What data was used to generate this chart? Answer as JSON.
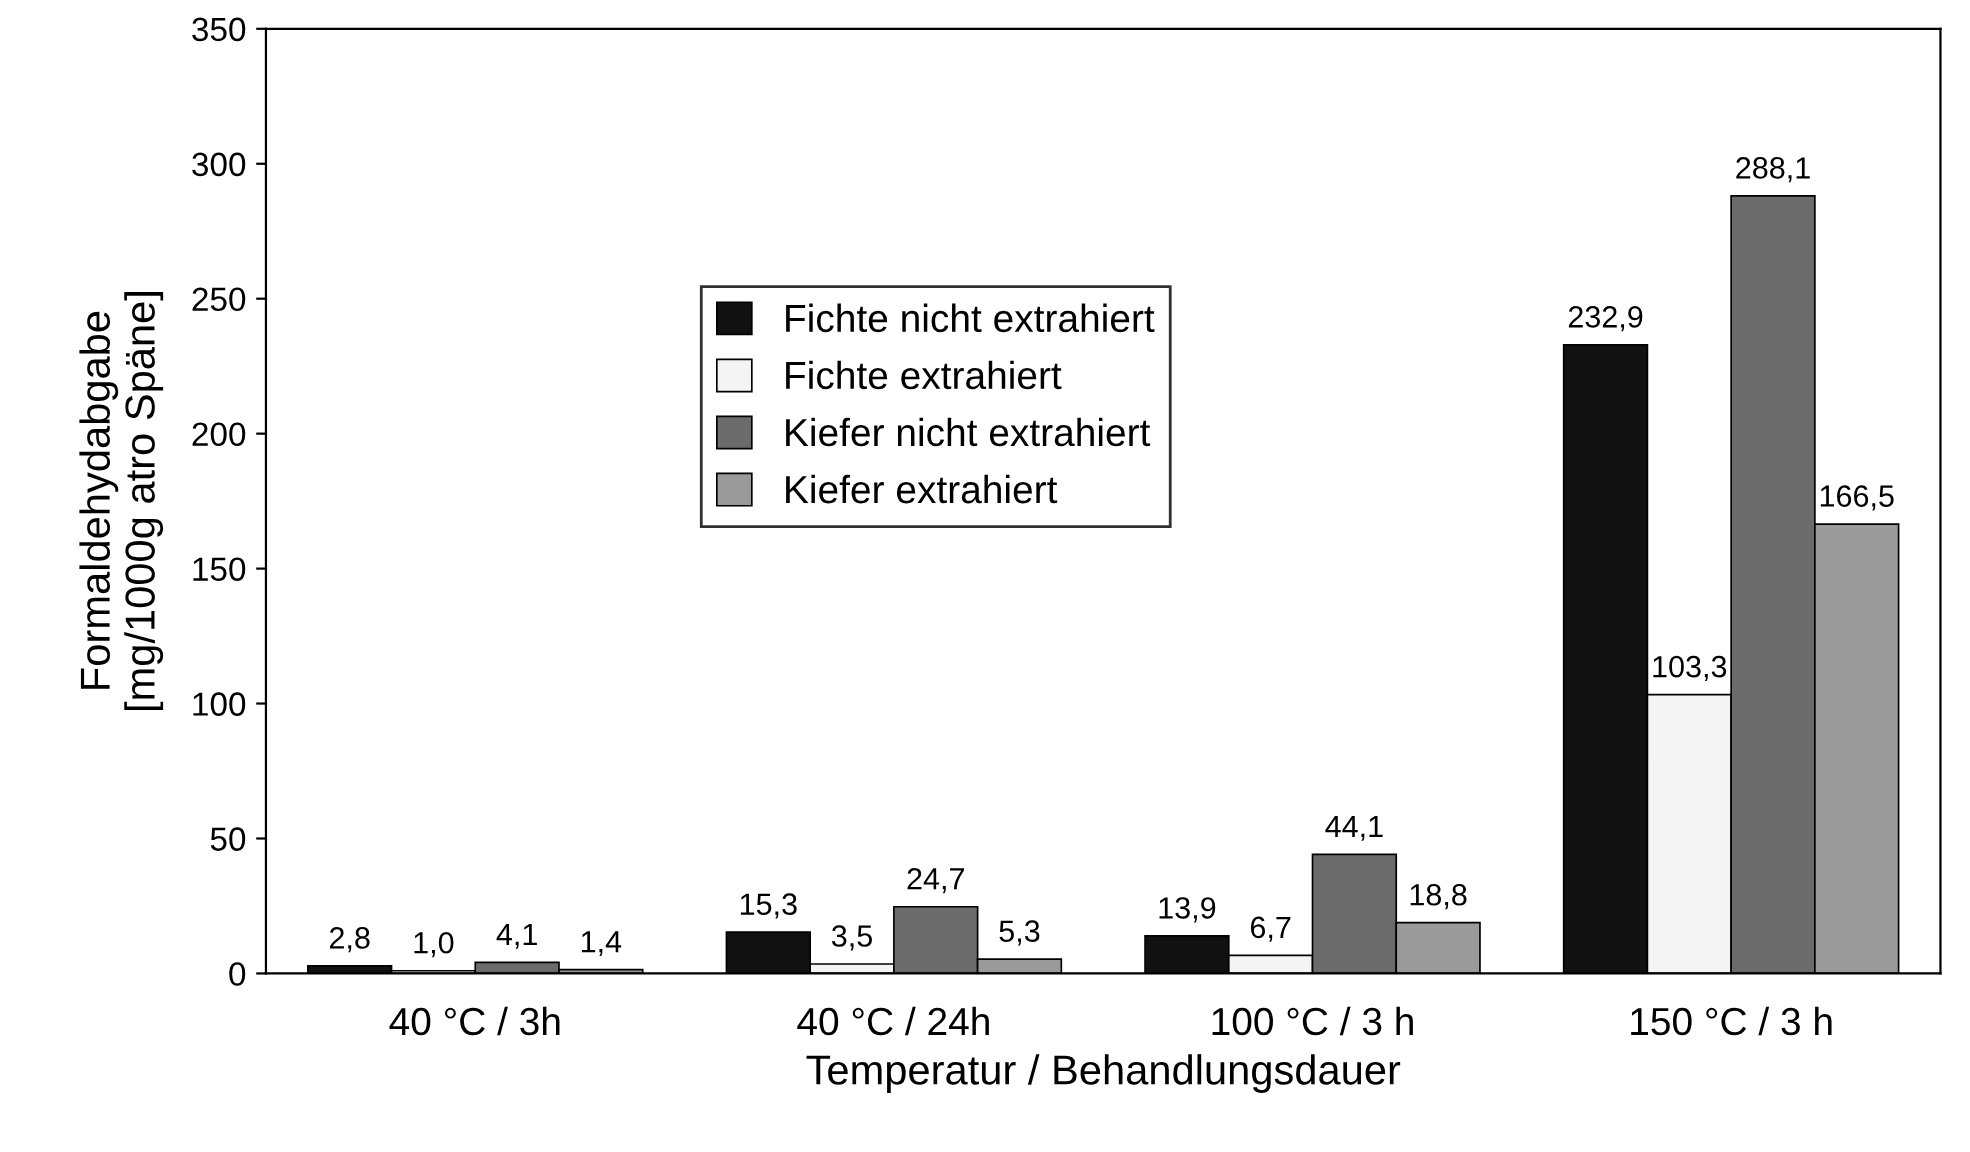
{
  "chart_data": {
    "type": "bar",
    "xlabel": "Temperatur / Behandlungsdauer",
    "ylabel": "Formaldehydabgabe\n[mg/1000g atro Späne]",
    "categories": [
      "40 °C / 3h",
      "40 °C / 24h",
      "100 °C / 3 h",
      "150 °C / 3 h"
    ],
    "series": [
      {
        "name": "Fichte nicht extrahiert",
        "color": "#111111",
        "values": [
          2.8,
          15.3,
          13.9,
          232.9
        ],
        "value_labels": [
          "2,8",
          "15,3",
          "13,9",
          "232,9"
        ]
      },
      {
        "name": "Fichte extrahiert",
        "color": "#f4f4f4",
        "values": [
          1.0,
          3.5,
          6.7,
          103.3
        ],
        "value_labels": [
          "1,0",
          "3,5",
          "6,7",
          "103,3"
        ]
      },
      {
        "name": "Kiefer nicht extrahiert",
        "color": "#6b6b6b",
        "values": [
          4.1,
          24.7,
          44.1,
          288.1
        ],
        "value_labels": [
          "4,1",
          "24,7",
          "44,1",
          "288,1"
        ]
      },
      {
        "name": "Kiefer extrahiert",
        "color": "#9a9a9a",
        "values": [
          1.4,
          5.3,
          18.8,
          166.5
        ],
        "value_labels": [
          "1,4",
          "5,3",
          "18,8",
          "166,5"
        ]
      }
    ],
    "ylim": [
      0,
      350
    ],
    "yticks": [
      0,
      50,
      100,
      150,
      200,
      250,
      300,
      350
    ],
    "grid": false,
    "legend": "center"
  }
}
